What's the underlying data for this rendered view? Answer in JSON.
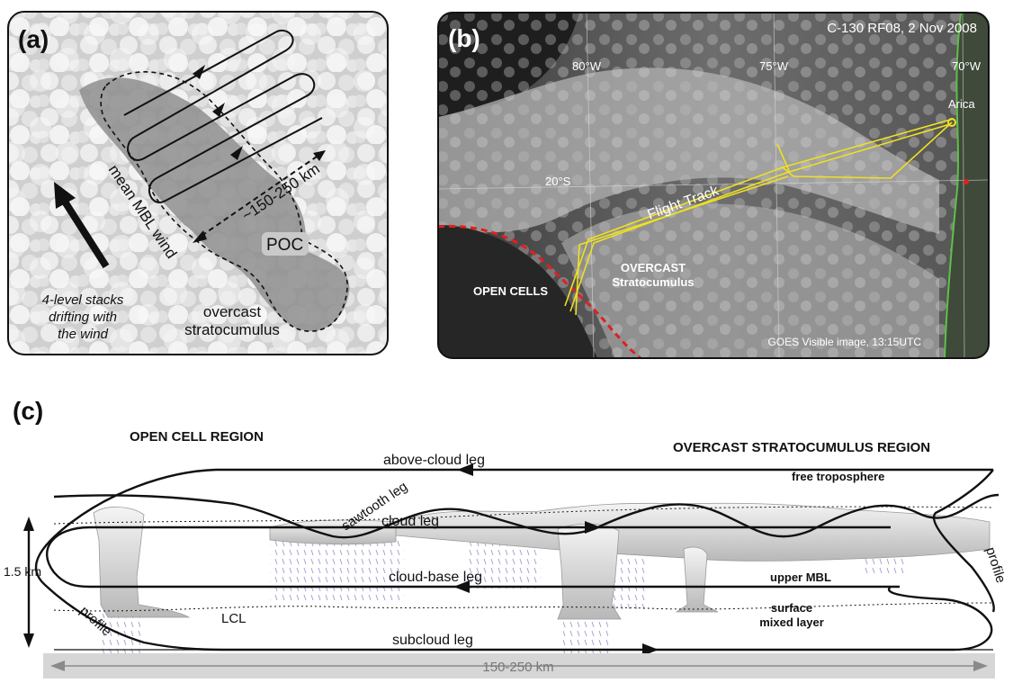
{
  "panel_a": {
    "label": "(a)",
    "poc_label": "POC",
    "distance_label": "~150-250 km",
    "wind_label": "mean MBL wind",
    "stacks_lines": [
      "4-level stacks",
      "drifting with",
      "the wind"
    ],
    "overcast_lines": [
      "overcast",
      "stratocumulus"
    ]
  },
  "panel_b": {
    "label": "(b)",
    "header": "C-130 RF08, 2 Nov 2008",
    "lon_labels": [
      "80°W",
      "75°W",
      "70°W"
    ],
    "lat_label": "20°S",
    "city_label": "Arica",
    "track_label": "Flight Track",
    "open_cells_label": "OPEN CELLS",
    "overcast_lines": [
      "OVERCAST",
      "Stratocumulus"
    ],
    "footer": "GOES Visible image, 13:15UTC"
  },
  "panel_c": {
    "label": "(c)",
    "left_region": "OPEN CELL REGION",
    "right_region": "OVERCAST STRATOCUMULUS REGION",
    "free_troposphere": "free troposphere",
    "above_cloud_leg": "above-cloud leg",
    "sawtooth_leg": "sawtooth leg",
    "cloud_leg": "cloud leg",
    "cloud_base_leg": "cloud-base leg",
    "subcloud_leg": "subcloud leg",
    "upper_mbl": "upper MBL",
    "surface_lines": [
      "surface",
      "mixed layer"
    ],
    "lcl": "LCL",
    "profile_left": "profile",
    "profile_right": "profile",
    "height": "1.5 km",
    "scale": "150-250 km"
  }
}
